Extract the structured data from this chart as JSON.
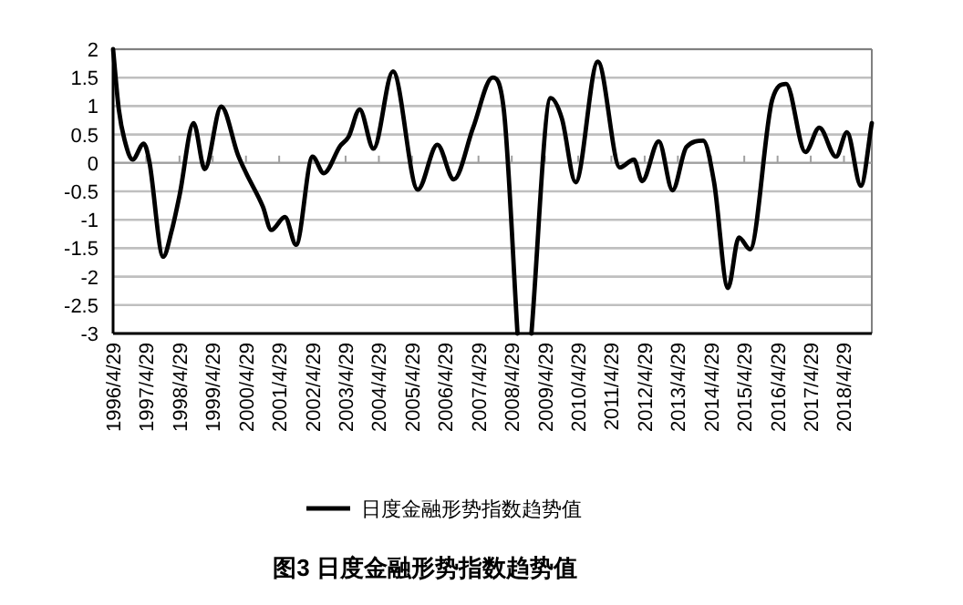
{
  "chart_data": {
    "type": "line",
    "title": "图3 日度金融形势指数趋势值",
    "x": [
      "1996-04-29",
      "1996-07",
      "1996-09",
      "1996-12",
      "1997-04",
      "1997-06",
      "1997-11",
      "1998-02",
      "1998-05",
      "1998-10",
      "1999-02",
      "1999-08",
      "2000-02",
      "2000-05",
      "2000-11",
      "2001-02",
      "2001-07",
      "2001-11",
      "2002-05",
      "2002-09",
      "2003-03",
      "2003-06",
      "2003-10",
      "2004-03",
      "2004-10",
      "2005-07",
      "2006-02",
      "2006-08",
      "2007-03",
      "2007-10",
      "2008-02",
      "2008-07",
      "2008-09",
      "2008-12",
      "2009-07",
      "2009-11",
      "2010-04",
      "2010-12",
      "2011-08",
      "2012-01",
      "2012-04",
      "2012-10",
      "2013-03",
      "2013-08",
      "2014-02",
      "2014-06",
      "2014-11",
      "2015-03",
      "2015-07",
      "2016-03",
      "2016-08",
      "2017-03",
      "2017-08",
      "2018-02",
      "2018-06",
      "2018-11",
      "2019-03"
    ],
    "series": [
      {
        "name": "日度金融形势指数趋势值",
        "color": "#000000",
        "values": [
          2.0,
          0.94,
          0.41,
          0.06,
          0.34,
          0.03,
          -1.65,
          -1.2,
          -0.56,
          0.7,
          -0.11,
          0.99,
          0.14,
          -0.18,
          -0.77,
          -1.18,
          -0.95,
          -1.44,
          0.11,
          -0.18,
          0.3,
          0.46,
          0.94,
          0.25,
          1.61,
          -0.47,
          0.32,
          -0.29,
          0.62,
          1.5,
          0.94,
          -3,
          null,
          -3,
          1.14,
          0.78,
          -0.34,
          1.78,
          -0.08,
          0.06,
          -0.32,
          0.38,
          -0.48,
          0.28,
          0.39,
          -0.34,
          -2.2,
          -1.31,
          -1.52,
          1.11,
          1.39,
          0.19,
          0.62,
          0.11,
          0.54,
          -0.4,
          0.7
        ]
      }
    ],
    "xlim": [
      "1996-04-29",
      "2019-03"
    ],
    "xticks": [
      {
        "value": "1996-04-29",
        "label": "1996/4/29"
      },
      {
        "value": "1997-04-29",
        "label": "1997/4/29"
      },
      {
        "value": "1998-04-29",
        "label": "1998/4/29"
      },
      {
        "value": "1999-04-29",
        "label": "1999/4/29"
      },
      {
        "value": "2000-04-29",
        "label": "2000/4/29"
      },
      {
        "value": "2001-04-29",
        "label": "2001/4/29"
      },
      {
        "value": "2002-04-29",
        "label": "2002/4/29"
      },
      {
        "value": "2003-04-29",
        "label": "2003/4/29"
      },
      {
        "value": "2004-04-29",
        "label": "2004/4/29"
      },
      {
        "value": "2005-04-29",
        "label": "2005/4/29"
      },
      {
        "value": "2006-04-29",
        "label": "2006/4/29"
      },
      {
        "value": "2007-04-29",
        "label": "2007/4/29"
      },
      {
        "value": "2008-04-29",
        "label": "2008/4/29"
      },
      {
        "value": "2009-04-29",
        "label": "2009/4/29"
      },
      {
        "value": "2010-04-29",
        "label": "2010/4/29"
      },
      {
        "value": "2011-04-29",
        "label": "2011/4/29"
      },
      {
        "value": "2012-04-29",
        "label": "2012/4/29"
      },
      {
        "value": "2013-04-29",
        "label": "2013/4/29"
      },
      {
        "value": "2014-04-29",
        "label": "2014/4/29"
      },
      {
        "value": "2015-04-29",
        "label": "2015/4/29"
      },
      {
        "value": "2016-04-29",
        "label": "2016/4/29"
      },
      {
        "value": "2017-04-29",
        "label": "2017/4/29"
      },
      {
        "value": "2018-04-29",
        "label": "2018/4/29"
      }
    ],
    "ylim": [
      -3,
      2
    ],
    "yticks": [
      -3,
      -2.5,
      -2,
      -1.5,
      -1,
      -0.5,
      0,
      0.5,
      1,
      1.5,
      2
    ],
    "grid": "y",
    "legend": "bottom",
    "marker": "none",
    "line_style": "solid"
  }
}
